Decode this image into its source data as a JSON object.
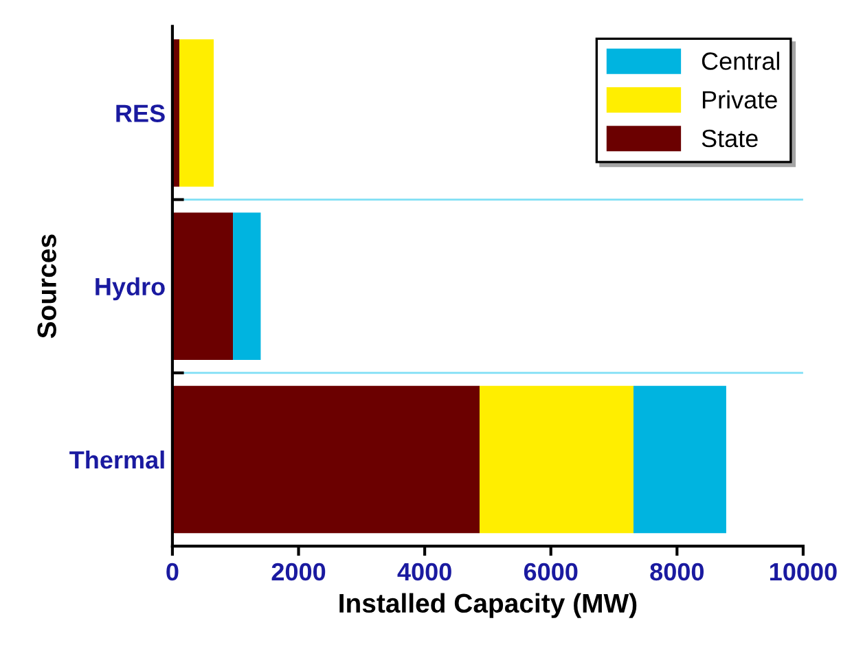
{
  "chart_data": {
    "type": "bar",
    "orientation": "horizontal",
    "stacked": true,
    "xlabel": "Installed Capacity (MW)",
    "ylabel": "Sources",
    "categories": [
      "RES",
      "Hydro",
      "Thermal"
    ],
    "series": [
      {
        "name": "State",
        "color": "#6b0000",
        "values": [
          110,
          960,
          4870
        ]
      },
      {
        "name": "Private",
        "color": "#ffee00",
        "values": [
          545,
          0,
          2440
        ]
      },
      {
        "name": "Central",
        "color": "#00b4e0",
        "values": [
          0,
          440,
          1470
        ]
      }
    ],
    "xlim": [
      0,
      10000
    ],
    "xticks": [
      0,
      2000,
      4000,
      6000,
      8000,
      10000
    ],
    "grid": "y",
    "legend": "top right"
  }
}
